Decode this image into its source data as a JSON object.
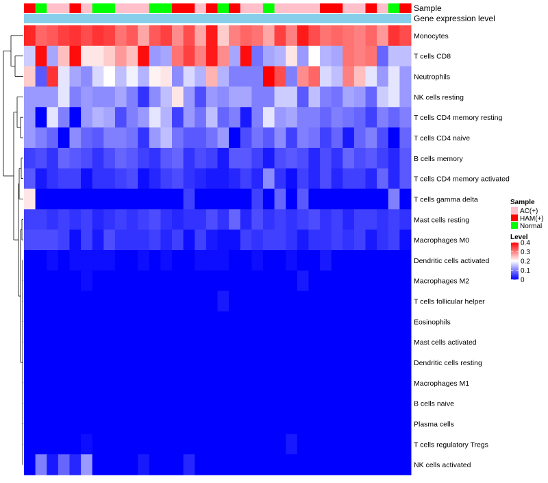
{
  "chart_data": {
    "type": "heatmap",
    "title": "",
    "annotation_rows": [
      {
        "name": "Sample",
        "label": "Sample"
      },
      {
        "name": "Gene expression level",
        "label": "Gene expression level",
        "color": "#87CEEB"
      }
    ],
    "sample_groups": [
      "HAM(+)",
      "Normal",
      "AC(+)",
      "AC(+)",
      "HAM(+)",
      "AC(+)",
      "Normal",
      "Normal",
      "AC(+)",
      "AC(+)",
      "AC(+)",
      "Normal",
      "Normal",
      "HAM(+)",
      "HAM(+)",
      "AC(+)",
      "HAM(+)",
      "Normal",
      "HAM(+)",
      "AC(+)",
      "AC(+)",
      "Normal",
      "AC(+)",
      "AC(+)",
      "AC(+)",
      "AC(+)",
      "HAM(+)",
      "HAM(+)",
      "AC(+)",
      "AC(+)",
      "HAM(+)",
      "AC(+)",
      "Normal",
      "HAM(+)"
    ],
    "rows": [
      "Monocytes",
      "T cells CD8",
      "Neutrophils",
      "NK cells resting",
      "T cells CD4 memory resting",
      "T cells CD4 naive",
      "B cells memory",
      "T cells CD4 memory activated",
      "T cells gamma delta",
      "Mast cells resting",
      "Macrophages M0",
      "Dendritic cells activated",
      "Macrophages M2",
      "T cells follicular helper",
      "Eosinophils",
      "Mast cells activated",
      "Dendritic cells resting",
      "Macrophages M1",
      "B cells naive",
      "Plasma cells",
      "T cells regulatory  Tregs",
      "NK cells activated"
    ],
    "n_columns": 34,
    "values": [
      [
        0.37,
        0.32,
        0.33,
        0.35,
        0.36,
        0.34,
        0.36,
        0.35,
        0.31,
        0.33,
        0.27,
        0.33,
        0.35,
        0.29,
        0.34,
        0.27,
        0.38,
        0.24,
        0.3,
        0.32,
        0.31,
        0.27,
        0.35,
        0.3,
        0.38,
        0.34,
        0.31,
        0.32,
        0.31,
        0.3,
        0.32,
        0.28,
        0.36,
        0.34
      ],
      [
        0.16,
        0.39,
        0.13,
        0.25,
        0.39,
        0.22,
        0.22,
        0.24,
        0.28,
        0.25,
        0.39,
        0.12,
        0.13,
        0.31,
        0.35,
        0.3,
        0.38,
        0.29,
        0.13,
        0.39,
        0.09,
        0.13,
        0.14,
        0.22,
        0.12,
        0.2,
        0.14,
        0.13,
        0.31,
        0.3,
        0.31,
        0.08,
        0.15,
        0.15
      ],
      [
        0.24,
        0.07,
        0.36,
        0.18,
        0.13,
        0.11,
        0.17,
        0.2,
        0.15,
        0.19,
        0.14,
        0.21,
        0.22,
        0.11,
        0.17,
        0.14,
        0.26,
        0.14,
        0.1,
        0.1,
        0.1,
        0.4,
        0.34,
        0.1,
        0.29,
        0.32,
        0.17,
        0.15,
        0.3,
        0.25,
        0.18,
        0.12,
        0.18,
        0.12
      ],
      [
        0.12,
        0.12,
        0.12,
        0.18,
        0.1,
        0.12,
        0.11,
        0.11,
        0.13,
        0.1,
        0.04,
        0.11,
        0.15,
        0.22,
        0.12,
        0.06,
        0.12,
        0.11,
        0.13,
        0.13,
        0.1,
        0.1,
        0.16,
        0.16,
        0.07,
        0.15,
        0.1,
        0.09,
        0.13,
        0.12,
        0.08,
        0.16,
        0.18,
        0.12
      ],
      [
        0.12,
        0.0,
        0.18,
        0.1,
        0.0,
        0.12,
        0.14,
        0.13,
        0.06,
        0.1,
        0.12,
        0.18,
        0.14,
        0.05,
        0.12,
        0.09,
        0.15,
        0.08,
        0.1,
        0.02,
        0.1,
        0.18,
        0.12,
        0.13,
        0.1,
        0.1,
        0.08,
        0.1,
        0.09,
        0.08,
        0.05,
        0.1,
        0.08,
        0.1
      ],
      [
        0.12,
        0.1,
        0.08,
        0.0,
        0.11,
        0.08,
        0.07,
        0.1,
        0.1,
        0.09,
        0.04,
        0.12,
        0.15,
        0.09,
        0.07,
        0.07,
        0.09,
        0.12,
        0.0,
        0.06,
        0.09,
        0.07,
        0.11,
        0.05,
        0.1,
        0.09,
        0.05,
        0.08,
        0.02,
        0.08,
        0.1,
        0.06,
        0.0,
        0.08
      ],
      [
        0.05,
        0.06,
        0.04,
        0.08,
        0.07,
        0.06,
        0.04,
        0.06,
        0.08,
        0.07,
        0.05,
        0.04,
        0.07,
        0.08,
        0.04,
        0.06,
        0.05,
        0.02,
        0.07,
        0.07,
        0.05,
        0.02,
        0.06,
        0.07,
        0.06,
        0.03,
        0.06,
        0.04,
        0.08,
        0.06,
        0.07,
        0.05,
        0.03,
        0.07
      ],
      [
        0.07,
        0.02,
        0.04,
        0.05,
        0.05,
        0.01,
        0.04,
        0.04,
        0.05,
        0.06,
        0.01,
        0.03,
        0.05,
        0.06,
        0.04,
        0.03,
        0.02,
        0.02,
        0.03,
        0.05,
        0.03,
        0.11,
        0.04,
        0.01,
        0.05,
        0.03,
        0.06,
        0.03,
        0.05,
        0.05,
        0.03,
        0.08,
        0.03,
        0.07
      ],
      [
        0.22,
        0.0,
        0.0,
        0.0,
        0.0,
        0.0,
        0.0,
        0.0,
        0.0,
        0.0,
        0.0,
        0.0,
        0.0,
        0.0,
        0.05,
        0.0,
        0.0,
        0.0,
        0.0,
        0.0,
        0.05,
        0.0,
        0.08,
        0.0,
        0.07,
        0.0,
        0.0,
        0.0,
        0.0,
        0.0,
        0.0,
        0.0,
        0.1,
        0.0
      ],
      [
        0.05,
        0.05,
        0.04,
        0.05,
        0.04,
        0.05,
        0.03,
        0.04,
        0.05,
        0.04,
        0.05,
        0.06,
        0.04,
        0.03,
        0.04,
        0.04,
        0.06,
        0.04,
        0.08,
        0.03,
        0.06,
        0.04,
        0.05,
        0.04,
        0.05,
        0.06,
        0.04,
        0.05,
        0.03,
        0.05,
        0.05,
        0.04,
        0.05,
        0.04
      ],
      [
        0.06,
        0.06,
        0.06,
        0.05,
        0.01,
        0.05,
        0.02,
        0.06,
        0.04,
        0.04,
        0.04,
        0.05,
        0.03,
        0.05,
        0.01,
        0.05,
        0.02,
        0.01,
        0.01,
        0.05,
        0.04,
        0.05,
        0.05,
        0.04,
        0.02,
        0.04,
        0.04,
        0.05,
        0.04,
        0.05,
        0.02,
        0.04,
        0.05,
        0.01
      ],
      [
        0.0,
        0.0,
        0.01,
        0.0,
        0.01,
        0.01,
        0.01,
        0.01,
        0.0,
        0.0,
        0.01,
        0.0,
        0.01,
        0.0,
        0.0,
        0.01,
        0.01,
        0.01,
        0.0,
        0.0,
        0.01,
        0.0,
        0.0,
        0.01,
        0.0,
        0.0,
        0.02,
        0.0,
        0.0,
        0.0,
        0.0,
        0.0,
        0.0,
        0.0
      ],
      [
        0.0,
        0.0,
        0.0,
        0.0,
        0.0,
        0.01,
        0.0,
        0.0,
        0.0,
        0.0,
        0.0,
        0.0,
        0.0,
        0.0,
        0.0,
        0.0,
        0.0,
        0.0,
        0.0,
        0.0,
        0.0,
        0.0,
        0.0,
        0.0,
        0.02,
        0.0,
        0.0,
        0.0,
        0.0,
        0.0,
        0.0,
        0.0,
        0.0,
        0.0
      ],
      [
        0.0,
        0.0,
        0.0,
        0.0,
        0.0,
        0.0,
        0.0,
        0.0,
        0.0,
        0.0,
        0.0,
        0.0,
        0.0,
        0.0,
        0.0,
        0.0,
        0.0,
        0.02,
        0.0,
        0.0,
        0.0,
        0.0,
        0.0,
        0.0,
        0.0,
        0.0,
        0.0,
        0.0,
        0.0,
        0.0,
        0.0,
        0.0,
        0.0,
        0.0
      ],
      [
        0.0,
        0.0,
        0.0,
        0.0,
        0.0,
        0.0,
        0.0,
        0.0,
        0.0,
        0.0,
        0.0,
        0.0,
        0.0,
        0.0,
        0.0,
        0.0,
        0.0,
        0.0,
        0.0,
        0.0,
        0.0,
        0.0,
        0.0,
        0.0,
        0.0,
        0.0,
        0.0,
        0.0,
        0.0,
        0.0,
        0.0,
        0.0,
        0.0,
        0.0
      ],
      [
        0.0,
        0.0,
        0.0,
        0.0,
        0.0,
        0.0,
        0.0,
        0.0,
        0.0,
        0.0,
        0.0,
        0.0,
        0.0,
        0.0,
        0.0,
        0.0,
        0.0,
        0.0,
        0.0,
        0.0,
        0.0,
        0.0,
        0.0,
        0.0,
        0.0,
        0.0,
        0.0,
        0.0,
        0.0,
        0.0,
        0.0,
        0.0,
        0.0,
        0.0
      ],
      [
        0.0,
        0.0,
        0.0,
        0.0,
        0.0,
        0.0,
        0.0,
        0.0,
        0.0,
        0.0,
        0.0,
        0.0,
        0.0,
        0.0,
        0.0,
        0.0,
        0.0,
        0.0,
        0.0,
        0.0,
        0.0,
        0.0,
        0.0,
        0.0,
        0.0,
        0.0,
        0.0,
        0.0,
        0.0,
        0.0,
        0.0,
        0.0,
        0.0,
        0.0
      ],
      [
        0.0,
        0.0,
        0.0,
        0.0,
        0.0,
        0.0,
        0.0,
        0.0,
        0.0,
        0.0,
        0.0,
        0.0,
        0.0,
        0.0,
        0.0,
        0.0,
        0.0,
        0.0,
        0.0,
        0.0,
        0.0,
        0.0,
        0.0,
        0.0,
        0.0,
        0.0,
        0.0,
        0.0,
        0.0,
        0.0,
        0.0,
        0.0,
        0.0,
        0.0
      ],
      [
        0.0,
        0.0,
        0.0,
        0.0,
        0.0,
        0.0,
        0.0,
        0.0,
        0.0,
        0.0,
        0.0,
        0.0,
        0.0,
        0.0,
        0.0,
        0.0,
        0.0,
        0.0,
        0.0,
        0.0,
        0.0,
        0.0,
        0.0,
        0.0,
        0.0,
        0.0,
        0.0,
        0.0,
        0.0,
        0.0,
        0.0,
        0.0,
        0.0,
        0.0
      ],
      [
        0.0,
        0.0,
        0.0,
        0.0,
        0.0,
        0.0,
        0.0,
        0.0,
        0.0,
        0.0,
        0.0,
        0.0,
        0.0,
        0.0,
        0.0,
        0.0,
        0.0,
        0.0,
        0.0,
        0.0,
        0.0,
        0.0,
        0.0,
        0.0,
        0.0,
        0.0,
        0.0,
        0.0,
        0.0,
        0.0,
        0.0,
        0.0,
        0.0,
        0.0
      ],
      [
        0.0,
        0.0,
        0.0,
        0.0,
        0.0,
        0.01,
        0.0,
        0.0,
        0.0,
        0.0,
        0.0,
        0.0,
        0.0,
        0.0,
        0.0,
        0.0,
        0.0,
        0.0,
        0.0,
        0.0,
        0.0,
        0.0,
        0.0,
        0.02,
        0.0,
        0.0,
        0.0,
        0.0,
        0.0,
        0.0,
        0.0,
        0.0,
        0.0,
        0.0
      ],
      [
        0.0,
        0.1,
        0.02,
        0.08,
        0.03,
        0.12,
        0.0,
        0.0,
        0.0,
        0.0,
        0.02,
        0.0,
        0.0,
        0.0,
        0.03,
        0.0,
        0.0,
        0.0,
        0.0,
        0.0,
        0.0,
        0.0,
        0.0,
        0.0,
        0.0,
        0.0,
        0.0,
        0.0,
        0.0,
        0.0,
        0.0,
        0.0,
        0.0,
        0.0
      ]
    ],
    "color_scale": {
      "min": 0,
      "mid": 0.2,
      "max": 0.4,
      "low": "#0000FF",
      "mid_color": "#FFFFFF",
      "high": "#FF0000"
    },
    "legend": {
      "position": "right",
      "sample_title": "Sample",
      "sample_entries": [
        {
          "label": "AC(+)",
          "color": "#FFC0CB"
        },
        {
          "label": "HAM(+)",
          "color": "#FF0000"
        },
        {
          "label": "Normal",
          "color": "#00FF00"
        }
      ],
      "level_title": "Level",
      "level_ticks": [
        0.4,
        0.3,
        0.2,
        0.1,
        0
      ]
    },
    "dendrogram": {
      "side": "left",
      "shown": true
    }
  }
}
